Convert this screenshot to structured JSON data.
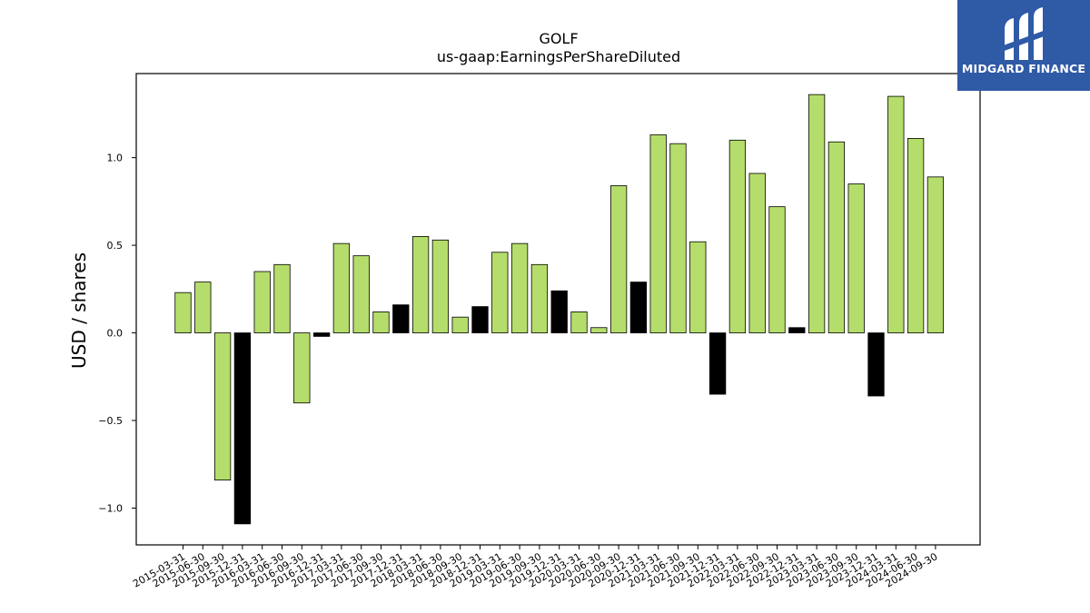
{
  "logo": {
    "text": "MIDGARD FINANCE"
  },
  "colors": {
    "positive": "#b5dd6b",
    "negative_or_highlight": "#000000",
    "edge": "#000000"
  },
  "chart_data": {
    "type": "bar",
    "title": "GOLF",
    "subtitle": "us-gaap:EarningsPerShareDiluted",
    "xlabel": "",
    "ylabel": "USD / shares",
    "ylim": [
      -1.21,
      1.48
    ],
    "yticks": [
      -1.0,
      -0.5,
      0.0,
      0.5,
      1.0
    ],
    "ytick_labels": [
      "−1.0",
      "−0.5",
      "0.0",
      "0.5",
      "1.0"
    ],
    "grid": false,
    "categories": [
      "2015-03-31",
      "2015-06-30",
      "2015-09-30",
      "2015-12-31",
      "2016-03-31",
      "2016-06-30",
      "2016-09-30",
      "2016-12-31",
      "2017-03-31",
      "2017-06-30",
      "2017-09-30",
      "2017-12-31",
      "2018-03-31",
      "2018-06-30",
      "2018-09-30",
      "2018-12-31",
      "2019-03-31",
      "2019-06-30",
      "2019-09-30",
      "2019-12-31",
      "2020-03-31",
      "2020-06-30",
      "2020-09-30",
      "2020-12-31",
      "2021-03-31",
      "2021-06-30",
      "2021-09-30",
      "2021-12-31",
      "2022-03-31",
      "2022-06-30",
      "2022-09-30",
      "2022-12-31",
      "2023-03-31",
      "2023-06-30",
      "2023-09-30",
      "2023-12-31",
      "2024-03-31",
      "2024-06-30",
      "2024-09-30"
    ],
    "values": [
      0.23,
      0.29,
      -0.84,
      -1.09,
      0.35,
      0.39,
      -0.4,
      -0.02,
      0.51,
      0.44,
      0.12,
      0.16,
      0.55,
      0.53,
      0.09,
      0.15,
      0.46,
      0.51,
      0.39,
      0.24,
      0.12,
      0.03,
      0.84,
      0.29,
      1.13,
      1.08,
      0.52,
      -0.35,
      1.1,
      0.91,
      0.72,
      0.03,
      1.36,
      1.09,
      0.85,
      -0.36,
      1.35,
      1.11,
      0.89
    ],
    "bar_colors": [
      "#b5dd6b",
      "#b5dd6b",
      "#b5dd6b",
      "#000000",
      "#b5dd6b",
      "#b5dd6b",
      "#b5dd6b",
      "#000000",
      "#b5dd6b",
      "#b5dd6b",
      "#b5dd6b",
      "#000000",
      "#b5dd6b",
      "#b5dd6b",
      "#b5dd6b",
      "#000000",
      "#b5dd6b",
      "#b5dd6b",
      "#b5dd6b",
      "#000000",
      "#b5dd6b",
      "#b5dd6b",
      "#b5dd6b",
      "#000000",
      "#b5dd6b",
      "#b5dd6b",
      "#b5dd6b",
      "#000000",
      "#b5dd6b",
      "#b5dd6b",
      "#b5dd6b",
      "#000000",
      "#b5dd6b",
      "#b5dd6b",
      "#b5dd6b",
      "#000000",
      "#b5dd6b",
      "#b5dd6b",
      "#b5dd6b"
    ]
  }
}
